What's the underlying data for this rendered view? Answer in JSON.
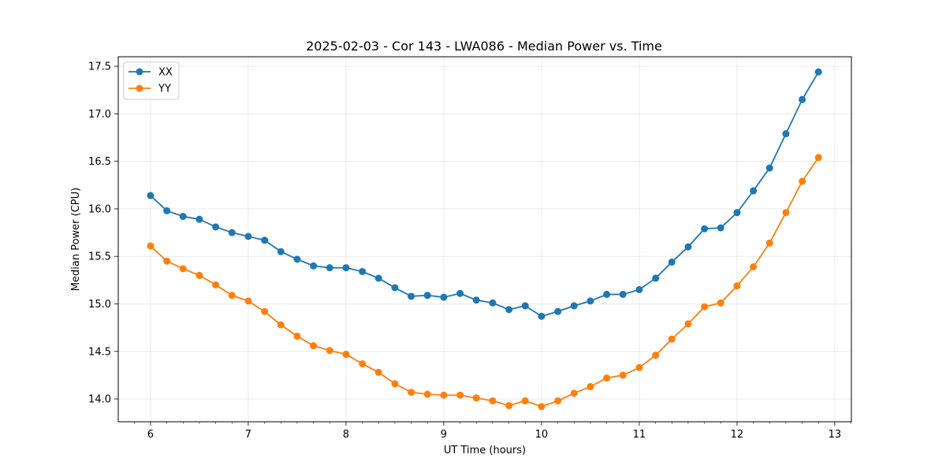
{
  "chart_data": {
    "type": "line",
    "title": "2025-02-03 - Cor 143 - LWA086 - Median Power vs. Time",
    "xlabel": "UT Time (hours)",
    "ylabel": "Median Power (CPU)",
    "xlim": [
      5.67,
      13.17
    ],
    "ylim": [
      13.76,
      17.6
    ],
    "x_ticks": [
      6,
      7,
      8,
      9,
      10,
      11,
      12,
      13
    ],
    "y_ticks": [
      14.0,
      14.5,
      15.0,
      15.5,
      16.0,
      16.5,
      17.0,
      17.5
    ],
    "y_tick_labels": [
      "14.0",
      "14.5",
      "15.0",
      "15.5",
      "16.0",
      "16.5",
      "17.0",
      "17.5"
    ],
    "grid": true,
    "legend_position": "top-left",
    "x": [
      6.0,
      6.167,
      6.333,
      6.5,
      6.667,
      6.833,
      7.0,
      7.167,
      7.333,
      7.5,
      7.667,
      7.833,
      8.0,
      8.167,
      8.333,
      8.5,
      8.667,
      8.833,
      9.0,
      9.167,
      9.333,
      9.5,
      9.667,
      9.833,
      10.0,
      10.167,
      10.333,
      10.5,
      10.667,
      10.833,
      11.0,
      11.167,
      11.333,
      11.5,
      11.667,
      11.833,
      12.0,
      12.167,
      12.333,
      12.5,
      12.667,
      12.833
    ],
    "series": [
      {
        "name": "XX",
        "color": "#1f77b4",
        "values": [
          16.14,
          15.98,
          15.92,
          15.89,
          15.81,
          15.75,
          15.71,
          15.67,
          15.55,
          15.47,
          15.4,
          15.38,
          15.38,
          15.34,
          15.27,
          15.17,
          15.08,
          15.09,
          15.07,
          15.11,
          15.04,
          15.01,
          14.94,
          14.98,
          14.87,
          14.92,
          14.98,
          15.03,
          15.1,
          15.1,
          15.15,
          15.27,
          15.44,
          15.6,
          15.79,
          15.8,
          15.96,
          16.19,
          16.43,
          16.79,
          17.15,
          17.44
        ]
      },
      {
        "name": "YY",
        "color": "#ff7f0e",
        "values": [
          15.61,
          15.45,
          15.37,
          15.3,
          15.2,
          15.09,
          15.03,
          14.92,
          14.78,
          14.66,
          14.56,
          14.51,
          14.47,
          14.37,
          14.28,
          14.16,
          14.07,
          14.05,
          14.04,
          14.04,
          14.01,
          13.98,
          13.93,
          13.98,
          13.92,
          13.98,
          14.06,
          14.13,
          14.22,
          14.25,
          14.33,
          14.46,
          14.63,
          14.79,
          14.97,
          15.01,
          15.19,
          15.39,
          15.64,
          15.96,
          16.29,
          16.54
        ]
      }
    ]
  }
}
